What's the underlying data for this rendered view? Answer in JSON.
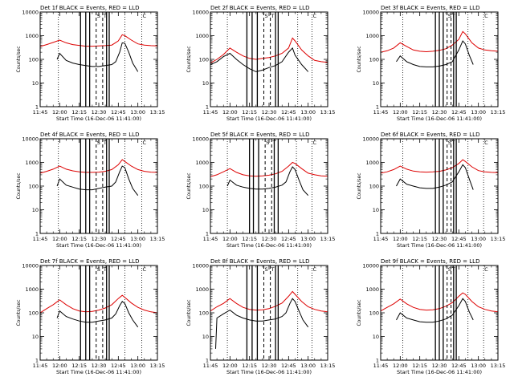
{
  "chart_data": {
    "type": "line",
    "y_scale": "log",
    "ylim": [
      1,
      10000
    ],
    "y_ticks": [
      1,
      10,
      100,
      1000,
      10000
    ],
    "y_tick_labels": [
      "1",
      "10",
      "100",
      "1000",
      "10000"
    ],
    "ylabel": "Counts/sec",
    "xlim": [
      "11:45",
      "13:15"
    ],
    "x_tick_labels": [
      "11:45",
      "12:00",
      "12:15",
      "12:30",
      "12:45",
      "13:00",
      "13:15"
    ],
    "xlabel": "Start Time (16-Dec-06 11:41:00)",
    "series_colors": {
      "events": "#000000",
      "lld": "#dd0000"
    },
    "panels": [
      {
        "title": "Det 1f BLACK = Events, RED = LLD",
        "lld": {
          "x": [
            "11:45",
            "11:50",
            "11:55",
            "12:00",
            "12:05",
            "12:10",
            "12:15",
            "12:20",
            "12:25",
            "12:30",
            "12:35",
            "12:40",
            "12:45",
            "12:48",
            "12:50",
            "12:55",
            "13:00",
            "13:05",
            "13:10",
            "13:15"
          ],
          "y": [
            350,
            420,
            520,
            650,
            500,
            420,
            390,
            360,
            360,
            370,
            380,
            400,
            600,
            1100,
            1000,
            650,
            450,
            400,
            380,
            370
          ]
        },
        "events": {
          "x": [
            "11:58",
            "12:00",
            "12:05",
            "12:10",
            "12:15",
            "12:20",
            "12:25",
            "12:30",
            "12:35",
            "12:40",
            "12:43",
            "12:46",
            "12:48",
            "12:50",
            "12:53",
            "12:56",
            "13:00"
          ],
          "y": [
            100,
            180,
            90,
            70,
            60,
            55,
            50,
            50,
            55,
            60,
            80,
            200,
            500,
            480,
            200,
            70,
            30
          ]
        },
        "solid_lines": [
          "12:16",
          "12:20",
          "12:23",
          "12:36",
          "12:38"
        ],
        "dashed_lines": [
          "12:28",
          "12:33"
        ],
        "dotted_lines": [
          "11:59",
          "12:50",
          "13:03"
        ],
        "markers": [
          "S",
          "T",
          "C"
        ]
      },
      {
        "title": "Det 2f BLACK = Events, RED = LLD",
        "lld": {
          "x": [
            "11:45",
            "11:50",
            "11:55",
            "12:00",
            "12:05",
            "12:10",
            "12:15",
            "12:20",
            "12:25",
            "12:30",
            "12:35",
            "12:40",
            "12:45",
            "12:48",
            "12:50",
            "12:55",
            "13:00",
            "13:05",
            "13:10",
            "13:15"
          ],
          "y": [
            70,
            100,
            160,
            300,
            200,
            140,
            110,
            100,
            110,
            120,
            140,
            180,
            300,
            800,
            600,
            250,
            140,
            90,
            80,
            75
          ]
        },
        "events": {
          "x": [
            "11:45",
            "11:50",
            "11:55",
            "12:00",
            "12:05",
            "12:10",
            "12:15",
            "12:20",
            "12:25",
            "12:30",
            "12:35",
            "12:40",
            "12:45",
            "12:48",
            "12:50",
            "12:55",
            "13:00"
          ],
          "y": [
            60,
            80,
            130,
            180,
            100,
            60,
            40,
            30,
            35,
            45,
            55,
            80,
            200,
            300,
            150,
            60,
            30
          ]
        },
        "solid_lines": [
          "12:13",
          "12:17",
          "12:21",
          "12:35",
          "12:37"
        ],
        "dashed_lines": [
          "12:26",
          "12:31"
        ],
        "dotted_lines": [
          "11:58",
          "12:52",
          "13:03"
        ],
        "markers": [
          "S",
          "T",
          "C"
        ]
      },
      {
        "title": "Det 3f BLACK = Events, RED = LLD",
        "lld": {
          "x": [
            "11:45",
            "11:50",
            "11:55",
            "12:00",
            "12:05",
            "12:10",
            "12:15",
            "12:20",
            "12:25",
            "12:30",
            "12:35",
            "12:40",
            "12:45",
            "12:48",
            "12:50",
            "12:55",
            "13:00",
            "13:05",
            "13:10",
            "13:15"
          ],
          "y": [
            200,
            230,
            300,
            500,
            350,
            250,
            220,
            210,
            220,
            240,
            280,
            400,
            700,
            1500,
            1200,
            500,
            300,
            250,
            230,
            220
          ]
        },
        "events": {
          "x": [
            "11:57",
            "12:00",
            "12:05",
            "12:10",
            "12:15",
            "12:20",
            "12:25",
            "12:30",
            "12:35",
            "12:40",
            "12:45",
            "12:48",
            "12:50",
            "12:53",
            "12:56"
          ],
          "y": [
            80,
            140,
            80,
            60,
            50,
            48,
            48,
            52,
            60,
            80,
            250,
            600,
            450,
            150,
            60
          ]
        },
        "solid_lines": [
          "12:27",
          "12:30",
          "12:33",
          "12:41",
          "12:43"
        ],
        "dashed_lines": [
          "12:36",
          "12:39"
        ],
        "dotted_lines": [
          "12:02",
          "12:52",
          "13:04"
        ],
        "markers": [
          "S",
          "T",
          "C"
        ]
      },
      {
        "title": "Det 4f BLACK = Events, RED = LLD",
        "lld": {
          "x": [
            "11:45",
            "11:50",
            "11:55",
            "12:00",
            "12:05",
            "12:10",
            "12:15",
            "12:20",
            "12:25",
            "12:30",
            "12:35",
            "12:40",
            "12:45",
            "12:48",
            "12:50",
            "12:55",
            "13:00",
            "13:05",
            "13:10",
            "13:15"
          ],
          "y": [
            350,
            420,
            520,
            700,
            520,
            440,
            400,
            380,
            380,
            390,
            420,
            500,
            800,
            1300,
            1100,
            700,
            500,
            420,
            390,
            380
          ]
        },
        "events": {
          "x": [
            "11:58",
            "12:00",
            "12:05",
            "12:10",
            "12:15",
            "12:20",
            "12:25",
            "12:30",
            "12:35",
            "12:40",
            "12:43",
            "12:46",
            "12:48",
            "12:50",
            "12:53",
            "12:56",
            "13:00"
          ],
          "y": [
            100,
            200,
            110,
            90,
            75,
            70,
            70,
            80,
            90,
            100,
            150,
            400,
            700,
            600,
            200,
            80,
            40
          ]
        },
        "solid_lines": [
          "12:16",
          "12:20",
          "12:23",
          "12:36",
          "12:38"
        ],
        "dashed_lines": [
          "12:28",
          "12:33"
        ],
        "dotted_lines": [
          "11:59",
          "12:50",
          "13:03"
        ],
        "markers": [
          "S",
          "T",
          "C"
        ]
      },
      {
        "title": "Det 5f BLACK = Events, RED = LLD",
        "lld": {
          "x": [
            "11:45",
            "11:50",
            "11:55",
            "12:00",
            "12:05",
            "12:10",
            "12:15",
            "12:20",
            "12:25",
            "12:30",
            "12:35",
            "12:40",
            "12:45",
            "12:48",
            "12:50",
            "12:55",
            "13:00",
            "13:05",
            "13:10",
            "13:15"
          ],
          "y": [
            250,
            300,
            400,
            550,
            380,
            300,
            270,
            260,
            270,
            290,
            330,
            420,
            700,
            1000,
            900,
            550,
            350,
            300,
            270,
            260
          ]
        },
        "events": {
          "x": [
            "11:58",
            "12:00",
            "12:05",
            "12:10",
            "12:15",
            "12:20",
            "12:25",
            "12:30",
            "12:35",
            "12:40",
            "12:43",
            "12:46",
            "12:48",
            "12:50",
            "12:53",
            "12:56",
            "13:00"
          ],
          "y": [
            100,
            180,
            110,
            90,
            80,
            75,
            75,
            80,
            90,
            110,
            150,
            400,
            650,
            500,
            180,
            70,
            40
          ]
        },
        "solid_lines": [
          "12:15",
          "12:18",
          "12:22",
          "12:34",
          "12:37"
        ],
        "dashed_lines": [
          "12:27",
          "12:32"
        ],
        "dotted_lines": [
          "11:58",
          "12:51",
          "13:03"
        ],
        "markers": [
          "S",
          "T",
          "C"
        ]
      },
      {
        "title": "Det 6f BLACK = Events, RED = LLD",
        "lld": {
          "x": [
            "11:45",
            "11:50",
            "11:55",
            "12:00",
            "12:05",
            "12:10",
            "12:15",
            "12:20",
            "12:25",
            "12:30",
            "12:35",
            "12:40",
            "12:45",
            "12:48",
            "12:50",
            "12:55",
            "13:00",
            "13:05",
            "13:10",
            "13:15"
          ],
          "y": [
            350,
            400,
            500,
            700,
            520,
            430,
            400,
            390,
            400,
            420,
            480,
            600,
            900,
            1300,
            1100,
            650,
            450,
            400,
            380,
            370
          ]
        },
        "events": {
          "x": [
            "11:57",
            "12:00",
            "12:05",
            "12:10",
            "12:15",
            "12:20",
            "12:25",
            "12:30",
            "12:35",
            "12:40",
            "12:45",
            "12:48",
            "12:50",
            "12:53",
            "12:56"
          ],
          "y": [
            100,
            200,
            120,
            100,
            85,
            80,
            80,
            90,
            110,
            150,
            400,
            800,
            600,
            200,
            70
          ]
        },
        "solid_lines": [
          "12:27",
          "12:30",
          "12:33",
          "12:41",
          "12:43"
        ],
        "dashed_lines": [
          "12:36",
          "12:39"
        ],
        "dotted_lines": [
          "12:02",
          "12:52",
          "13:04"
        ],
        "markers": [
          "S",
          "T",
          "C"
        ]
      },
      {
        "title": "Det 7f BLACK = Events, RED = LLD",
        "lld": {
          "x": [
            "11:45",
            "11:50",
            "11:55",
            "12:00",
            "12:05",
            "12:10",
            "12:15",
            "12:20",
            "12:25",
            "12:30",
            "12:35",
            "12:40",
            "12:45",
            "12:48",
            "12:50",
            "12:55",
            "13:00",
            "13:05",
            "13:10",
            "13:15"
          ],
          "y": [
            100,
            150,
            220,
            350,
            220,
            150,
            120,
            110,
            115,
            130,
            160,
            220,
            400,
            550,
            450,
            260,
            170,
            130,
            110,
            100
          ]
        },
        "events": {
          "x": [
            "11:58",
            "12:00",
            "12:05",
            "12:10",
            "12:15",
            "12:20",
            "12:25",
            "12:30",
            "12:35",
            "12:40",
            "12:43",
            "12:46",
            "12:48",
            "12:50",
            "12:53",
            "12:56",
            "13:00"
          ],
          "y": [
            60,
            120,
            70,
            55,
            45,
            40,
            40,
            45,
            50,
            60,
            90,
            200,
            300,
            250,
            100,
            50,
            25
          ]
        },
        "solid_lines": [
          "12:16",
          "12:20",
          "12:23",
          "12:36",
          "12:38"
        ],
        "dashed_lines": [
          "12:28",
          "12:33"
        ],
        "dotted_lines": [
          "11:59",
          "12:50",
          "13:03"
        ],
        "markers": [
          "S",
          "T",
          "C"
        ]
      },
      {
        "title": "Det 8f BLACK = Events, RED = LLD",
        "lld": {
          "x": [
            "11:45",
            "11:50",
            "11:55",
            "12:00",
            "12:05",
            "12:10",
            "12:15",
            "12:20",
            "12:25",
            "12:30",
            "12:35",
            "12:40",
            "12:45",
            "12:48",
            "12:50",
            "12:55",
            "13:00",
            "13:05",
            "13:10",
            "13:15"
          ],
          "y": [
            120,
            180,
            250,
            400,
            250,
            170,
            140,
            130,
            135,
            150,
            190,
            260,
            500,
            800,
            600,
            300,
            180,
            140,
            120,
            110
          ]
        },
        "events": {
          "x": [
            "11:49",
            "11:50",
            "11:55",
            "12:00",
            "12:05",
            "12:10",
            "12:15",
            "12:20",
            "12:25",
            "12:30",
            "12:35",
            "12:40",
            "12:43",
            "12:46",
            "12:48",
            "12:50",
            "12:53",
            "12:56",
            "13:00"
          ],
          "y": [
            3,
            60,
            90,
            130,
            80,
            60,
            50,
            45,
            45,
            50,
            55,
            70,
            100,
            250,
            400,
            300,
            120,
            50,
            25
          ]
        },
        "solid_lines": [
          "12:13",
          "12:17",
          "12:21",
          "12:35",
          "12:37"
        ],
        "dashed_lines": [
          "12:26",
          "12:31"
        ],
        "dotted_lines": [
          "11:58",
          "12:52",
          "13:03"
        ],
        "markers": [
          "S",
          "T",
          "C"
        ]
      },
      {
        "title": "Det 9f BLACK = Events, RED = LLD",
        "lld": {
          "x": [
            "11:45",
            "11:50",
            "11:55",
            "12:00",
            "12:05",
            "12:10",
            "12:15",
            "12:20",
            "12:25",
            "12:30",
            "12:35",
            "12:40",
            "12:45",
            "12:48",
            "12:50",
            "12:55",
            "13:00",
            "13:05",
            "13:10",
            "13:15"
          ],
          "y": [
            120,
            170,
            240,
            380,
            240,
            170,
            140,
            130,
            135,
            150,
            190,
            270,
            500,
            700,
            600,
            300,
            180,
            140,
            120,
            110
          ]
        },
        "events": {
          "x": [
            "11:57",
            "12:00",
            "12:05",
            "12:10",
            "12:15",
            "12:20",
            "12:25",
            "12:30",
            "12:35",
            "12:40",
            "12:45",
            "12:48",
            "12:50",
            "12:53",
            "12:56"
          ],
          "y": [
            50,
            100,
            60,
            50,
            42,
            40,
            40,
            45,
            55,
            80,
            200,
            400,
            300,
            110,
            50
          ]
        },
        "solid_lines": [
          "12:27",
          "12:30",
          "12:33",
          "12:41",
          "12:43"
        ],
        "dashed_lines": [
          "12:36",
          "12:39"
        ],
        "dotted_lines": [
          "12:02",
          "12:52",
          "13:04"
        ],
        "markers": [
          "S",
          "T",
          "C"
        ]
      }
    ]
  }
}
